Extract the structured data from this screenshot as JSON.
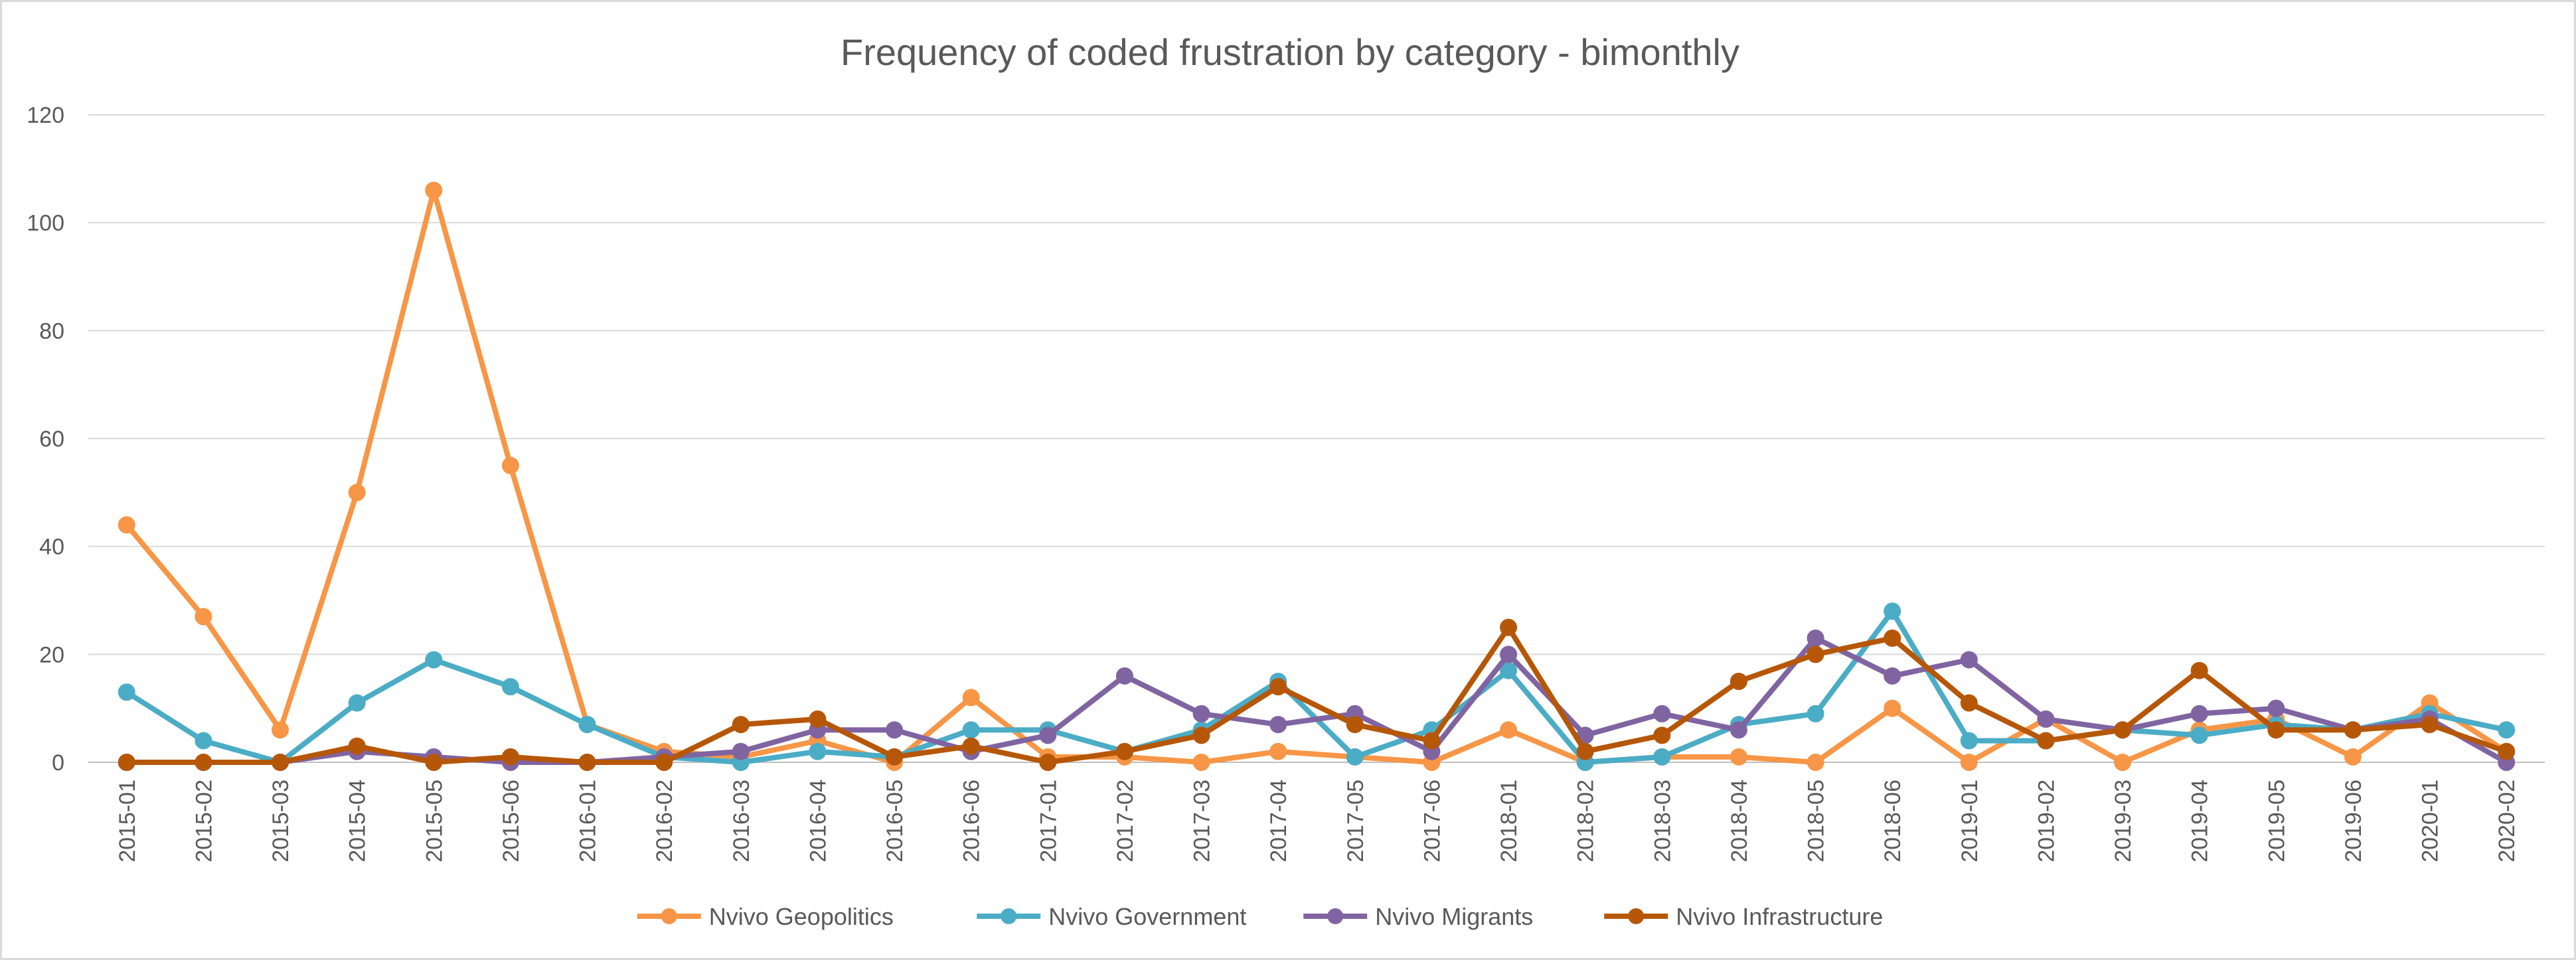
{
  "chart_data": {
    "type": "line",
    "title": "Frequency of coded frustration by category - bimonthly",
    "xlabel": "",
    "ylabel": "",
    "ylim": [
      0,
      120
    ],
    "yticks": [
      0,
      20,
      40,
      60,
      80,
      100,
      120
    ],
    "grid": true,
    "legend_position": "bottom",
    "categories": [
      "2015-01",
      "2015-02",
      "2015-03",
      "2015-04",
      "2015-05",
      "2015-06",
      "2016-01",
      "2016-02",
      "2016-03",
      "2016-04",
      "2016-05",
      "2016-06",
      "2017-01",
      "2017-02",
      "2017-03",
      "2017-04",
      "2017-05",
      "2017-06",
      "2018-01",
      "2018-02",
      "2018-03",
      "2018-04",
      "2018-05",
      "2018-06",
      "2019-01",
      "2019-02",
      "2019-03",
      "2019-04",
      "2019-05",
      "2019-06",
      "2020-01",
      "2020-02"
    ],
    "series": [
      {
        "name": "Nvivo Geopolitics",
        "color": "#f79646",
        "values": [
          44,
          27,
          6,
          50,
          106,
          55,
          7,
          2,
          1,
          4,
          0,
          12,
          1,
          1,
          0,
          2,
          1,
          0,
          6,
          0,
          1,
          1,
          0,
          10,
          0,
          8,
          0,
          6,
          8,
          1,
          11,
          2
        ]
      },
      {
        "name": "Nvivo Government",
        "color": "#4bacc6",
        "values": [
          13,
          4,
          0,
          11,
          19,
          14,
          7,
          1,
          0,
          2,
          1,
          6,
          6,
          2,
          6,
          15,
          1,
          6,
          17,
          0,
          1,
          7,
          9,
          28,
          4,
          4,
          6,
          5,
          7,
          6,
          9,
          6
        ]
      },
      {
        "name": "Nvivo Migrants",
        "color": "#8064a2",
        "values": [
          0,
          0,
          0,
          2,
          1,
          0,
          0,
          1,
          2,
          6,
          6,
          2,
          5,
          16,
          9,
          7,
          9,
          2,
          20,
          5,
          9,
          6,
          23,
          16,
          19,
          8,
          6,
          9,
          10,
          6,
          8,
          0
        ]
      },
      {
        "name": "Nvivo Infrastructure",
        "color": "#b65708",
        "values": [
          0,
          0,
          0,
          3,
          0,
          1,
          0,
          0,
          7,
          8,
          1,
          3,
          0,
          2,
          5,
          14,
          7,
          4,
          25,
          2,
          5,
          15,
          20,
          23,
          11,
          4,
          6,
          17,
          6,
          6,
          7,
          2
        ]
      }
    ]
  }
}
